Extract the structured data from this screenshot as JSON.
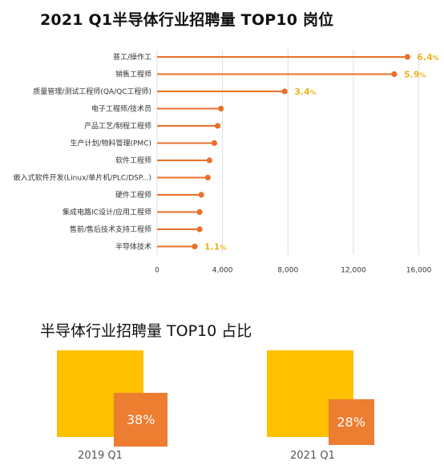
{
  "title_top": "2021 Q1半导体行业招聘量 TOP10 岗位",
  "title_bottom": "半导体行业招聘量 TOP10 占比",
  "chart_data": [
    {
      "type": "lollipop",
      "title": "2021 Q1半导体行业招聘量 TOP10 岗位",
      "categories": [
        "普工/操作工",
        "销售工程师",
        "质量管理/测试工程师(QA/QC工程师)",
        "电子工程师/技术员",
        "产品工艺/制程工程师",
        "生产计划/物料管理(PMC)",
        "软件工程师",
        "嵌入式软件开发(Linux/单片机/PLC/DSP...)",
        "硬件工程师",
        "集成电路IC设计/应用工程师",
        "售前/售后技术支持工程师",
        "半导体技术"
      ],
      "values": [
        15300,
        14500,
        7800,
        3900,
        3700,
        3500,
        3200,
        3100,
        2700,
        2600,
        2600,
        2300
      ],
      "value_labels": [
        "6.4%",
        "5.9%",
        "3.4%",
        "",
        "",
        "",
        "",
        "",
        "",
        "",
        "",
        "1.1%"
      ],
      "xlim": [
        0,
        17000
      ],
      "xticks": [
        0,
        4000,
        8000,
        12000,
        16000
      ],
      "xtick_labels": [
        "0",
        "4,000",
        "8,000",
        "12,000",
        "16,000"
      ],
      "grid": true,
      "colors": {
        "stem": "#e8702a",
        "dot": "#e8702a",
        "label": "#f0b323",
        "grid": "#dddddd"
      }
    },
    {
      "type": "bar",
      "title": "半导体行业招聘量 TOP10 占比",
      "categories": [
        "2019 Q1",
        "2021 Q1"
      ],
      "values": [
        38,
        28
      ],
      "value_labels": [
        "38%",
        "28%"
      ],
      "unit": "%",
      "colors": {
        "outer": "#ffc000",
        "inner": "#ed7d31"
      }
    }
  ]
}
